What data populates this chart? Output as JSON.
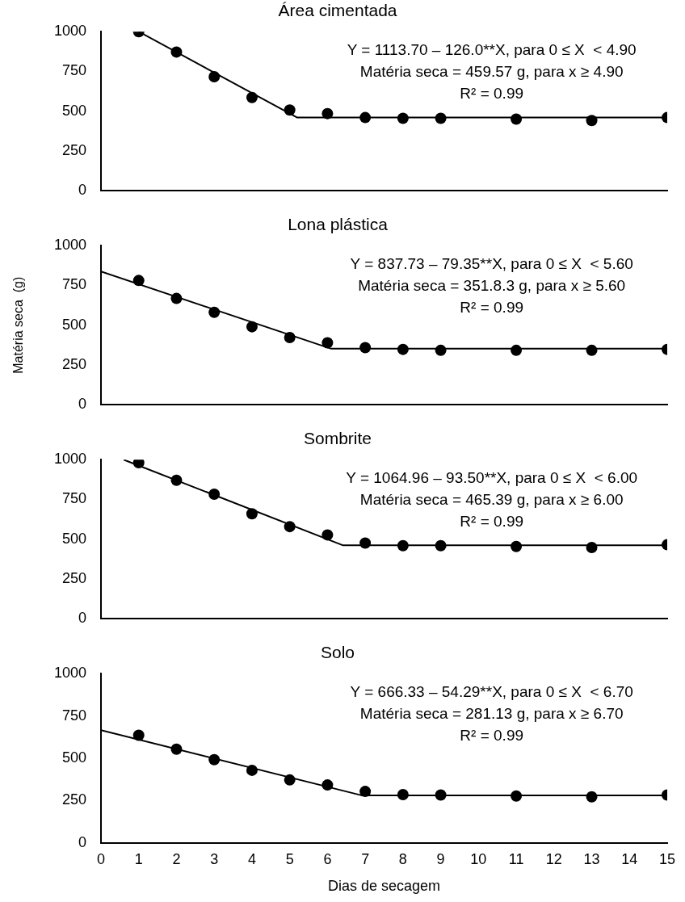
{
  "chart_data": [
    {
      "type": "scatter",
      "title": "Área cimentada",
      "x": [
        1,
        2,
        3,
        4,
        5,
        6,
        7,
        8,
        9,
        11,
        13,
        15
      ],
      "xlim": [
        0,
        15
      ],
      "xticks": [
        0,
        1,
        2,
        3,
        4,
        5,
        6,
        7,
        8,
        9,
        10,
        11,
        12,
        13,
        14,
        15
      ],
      "ylim": [
        0,
        1000
      ],
      "yticks": [
        0,
        250,
        500,
        750,
        1000
      ],
      "tick_labels": "y",
      "grid": false,
      "legend": false,
      "series": [
        {
          "color": "#000000",
          "marker": "circle",
          "values": [
            1000,
            872,
            717,
            586,
            507,
            485,
            460,
            455,
            455,
            450,
            441,
            460
          ]
        },
        {
          "type": "line",
          "marker": "none",
          "color": "#000000",
          "x": [
            1,
            5.2,
            15
          ],
          "values": [
            1000,
            460,
            460
          ]
        }
      ],
      "annotations": [
        "Y = 1113.70 – 126.0**X, para 0 ≤ X  < 4.90",
        "Matéria seca = 459.57 g, para x ≥ 4.90",
        "R² = 0.99"
      ]
    },
    {
      "type": "scatter",
      "title": "Lona plástica",
      "ylabel": "Matéria seca  (g)",
      "x": [
        1,
        2,
        3,
        4,
        5,
        6,
        7,
        8,
        9,
        11,
        13,
        15
      ],
      "xlim": [
        0,
        15
      ],
      "xticks": [
        0,
        1,
        2,
        3,
        4,
        5,
        6,
        7,
        8,
        9,
        10,
        11,
        12,
        13,
        14,
        15
      ],
      "ylim": [
        0,
        1000
      ],
      "yticks": [
        0,
        250,
        500,
        750,
        1000
      ],
      "tick_labels": "y",
      "grid": false,
      "legend": false,
      "series": [
        {
          "color": "#000000",
          "marker": "circle",
          "values": [
            781,
            668,
            581,
            490,
            422,
            389,
            359,
            348,
            342,
            342,
            342,
            348
          ]
        },
        {
          "type": "line",
          "marker": "none",
          "color": "#000000",
          "x": [
            0,
            6.1,
            15
          ],
          "values": [
            837,
            352,
            352
          ]
        }
      ],
      "annotations": [
        "Y = 837.73 – 79.35**X, para 0 ≤ X  < 5.60",
        "Matéria seca = 351.8.3 g, para x ≥ 5.60",
        "R² = 0.99"
      ]
    },
    {
      "type": "scatter",
      "title": "Sombrite",
      "x": [
        1,
        2,
        3,
        4,
        5,
        6,
        7,
        8,
        9,
        11,
        13,
        15
      ],
      "xlim": [
        0,
        15
      ],
      "xticks": [
        0,
        1,
        2,
        3,
        4,
        5,
        6,
        7,
        8,
        9,
        10,
        11,
        12,
        13,
        14,
        15
      ],
      "ylim": [
        0,
        1000
      ],
      "yticks": [
        0,
        250,
        500,
        750,
        1000
      ],
      "tick_labels": "y",
      "grid": false,
      "legend": false,
      "series": [
        {
          "color": "#000000",
          "marker": "circle",
          "values": [
            981,
            870,
            783,
            660,
            579,
            527,
            476,
            459,
            459,
            454,
            448,
            465
          ]
        },
        {
          "type": "line",
          "marker": "none",
          "color": "#000000",
          "x": [
            0.6,
            6.4,
            15
          ],
          "values": [
            1000,
            462,
            462
          ]
        }
      ],
      "annotations": [
        "Y = 1064.96 – 93.50**X, para 0 ≤ X  < 6.00",
        "Matéria seca = 465.39 g, para x ≥ 6.00",
        "R² = 0.99"
      ]
    },
    {
      "type": "scatter",
      "title": "Solo",
      "xlabel": "Dias de secagem",
      "x": [
        1,
        2,
        3,
        4,
        5,
        6,
        7,
        8,
        9,
        11,
        13,
        15
      ],
      "xlim": [
        0,
        15
      ],
      "xticks": [
        0,
        1,
        2,
        3,
        4,
        5,
        6,
        7,
        8,
        9,
        10,
        11,
        12,
        13,
        14,
        15
      ],
      "ylim": [
        0,
        1000
      ],
      "yticks": [
        0,
        250,
        500,
        750,
        1000
      ],
      "grid": false,
      "legend": false,
      "series": [
        {
          "color": "#000000",
          "marker": "circle",
          "values": [
            636,
            554,
            492,
            429,
            372,
            342,
            304,
            285,
            283,
            277,
            272,
            283
          ]
        },
        {
          "type": "line",
          "marker": "none",
          "color": "#000000",
          "x": [
            0,
            6.9,
            15
          ],
          "values": [
            666,
            281,
            281
          ]
        }
      ],
      "annotations": [
        "Y = 666.33 – 54.29**X, para 0 ≤ X  < 6.70",
        "Matéria seca = 281.13 g, para x ≥ 6.70",
        "R² = 0.99"
      ]
    }
  ]
}
